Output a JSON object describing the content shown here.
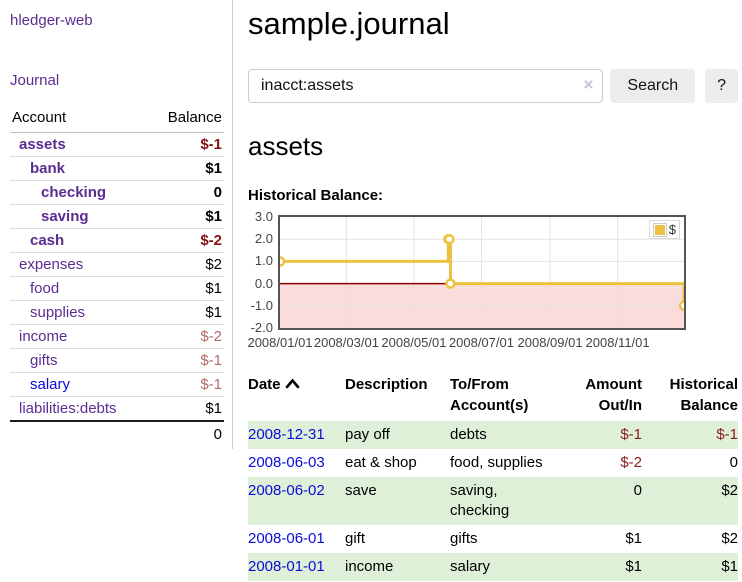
{
  "app": {
    "brand": "hledger-web",
    "nav_journal": "Journal"
  },
  "colors": {
    "link_purple": "#5b2d90",
    "link_blue": "#0b0bdb",
    "negative_strong": "#841414",
    "negative_soft": "#b06c6c",
    "register_negative": "#8b1c1c",
    "row_green": "#dff0d8",
    "chart_line": "#edc240",
    "chart_negative_fill": "#fbdcdc",
    "chart_zero_line": "#8b0000",
    "chart_border": "#545454",
    "chart_grid": "#e3e3e3"
  },
  "sidebar": {
    "headers": {
      "account": "Account",
      "balance": "Balance"
    },
    "rows": [
      {
        "account": "assets",
        "balance": "$-1",
        "depth": 1,
        "bold": true,
        "balance_tone": "neg-strong",
        "link": "purple"
      },
      {
        "account": "bank",
        "balance": "$1",
        "depth": 2,
        "bold": true,
        "balance_tone": "",
        "link": "purple"
      },
      {
        "account": "checking",
        "balance": "0",
        "depth": 3,
        "bold": true,
        "balance_tone": "",
        "link": "purple"
      },
      {
        "account": "saving",
        "balance": "$1",
        "depth": 3,
        "bold": true,
        "balance_tone": "",
        "link": "purple"
      },
      {
        "account": "cash",
        "balance": "$-2",
        "depth": 2,
        "bold": true,
        "balance_tone": "neg-strong",
        "link": "purple"
      },
      {
        "account": "expenses",
        "balance": "$2",
        "depth": 1,
        "bold": false,
        "balance_tone": "",
        "link": "purple"
      },
      {
        "account": "food",
        "balance": "$1",
        "depth": 2,
        "bold": false,
        "balance_tone": "",
        "link": "purple"
      },
      {
        "account": "supplies",
        "balance": "$1",
        "depth": 2,
        "bold": false,
        "balance_tone": "",
        "link": "purple"
      },
      {
        "account": "income",
        "balance": "$-2",
        "depth": 1,
        "bold": false,
        "balance_tone": "neg-soft",
        "link": "purple"
      },
      {
        "account": "gifts",
        "balance": "$-1",
        "depth": 2,
        "bold": false,
        "balance_tone": "neg-soft",
        "link": "purple"
      },
      {
        "account": "salary",
        "balance": "$-1",
        "depth": 2,
        "bold": false,
        "balance_tone": "neg-soft",
        "link": "blue"
      },
      {
        "account": "liabilities:debts",
        "balance": "$1",
        "depth": 1,
        "bold": false,
        "balance_tone": "",
        "link": "purple"
      }
    ],
    "total": "0"
  },
  "main": {
    "title": "sample.journal",
    "search": {
      "value": "inacct:assets",
      "clear_glyph": "×",
      "button_label": "Search",
      "help_label": "?"
    },
    "account_heading": "assets",
    "chart_label": "Historical Balance:"
  },
  "chart_data": {
    "type": "line",
    "title": "Historical Balance:",
    "step": true,
    "legend": {
      "position": "top-right",
      "label": "$"
    },
    "ylim": [
      -2,
      3
    ],
    "y_ticks": [
      "3.0",
      "2.0",
      "1.0",
      "0.0",
      "-1.0",
      "-2.0"
    ],
    "xlim_days": [
      0,
      365
    ],
    "x_ticks": [
      {
        "label": "2008/01/01",
        "day": 0
      },
      {
        "label": "2008/03/01",
        "day": 60
      },
      {
        "label": "2008/05/01",
        "day": 121
      },
      {
        "label": "2008/07/01",
        "day": 182
      },
      {
        "label": "2008/09/01",
        "day": 244
      },
      {
        "label": "2008/11/01",
        "day": 305
      }
    ],
    "series": [
      {
        "name": "$",
        "points": [
          {
            "date": "2008-01-01",
            "day": 0,
            "value": 1
          },
          {
            "date": "2008-06-01",
            "day": 152,
            "value": 2
          },
          {
            "date": "2008-06-02",
            "day": 153,
            "value": 2
          },
          {
            "date": "2008-06-03",
            "day": 154,
            "value": 0
          },
          {
            "date": "2008-12-31",
            "day": 365,
            "value": -1
          }
        ]
      }
    ],
    "grid": true,
    "negative_region_shaded": true
  },
  "register": {
    "headers": [
      "Date",
      "Description",
      "To/From Account(s)",
      "Amount Out/In",
      "Historical Balance"
    ],
    "sort_column": "Date",
    "sort_direction": "ascending",
    "rows": [
      {
        "date": "2008-12-31",
        "description": "pay off",
        "accounts": "debts",
        "amount": "$-1",
        "amount_negative": true,
        "balance": "$-1",
        "balance_negative": true
      },
      {
        "date": "2008-06-03",
        "description": "eat & shop",
        "accounts": "food, supplies",
        "amount": "$-2",
        "amount_negative": true,
        "balance": "0",
        "balance_negative": false
      },
      {
        "date": "2008-06-02",
        "description": "save",
        "accounts": "saving, checking",
        "amount": "0",
        "amount_negative": false,
        "balance": "$2",
        "balance_negative": false
      },
      {
        "date": "2008-06-01",
        "description": "gift",
        "accounts": "gifts",
        "amount": "$1",
        "amount_negative": false,
        "balance": "$2",
        "balance_negative": false
      },
      {
        "date": "2008-01-01",
        "description": "income",
        "accounts": "salary",
        "amount": "$1",
        "amount_negative": false,
        "balance": "$1",
        "balance_negative": false
      }
    ]
  }
}
